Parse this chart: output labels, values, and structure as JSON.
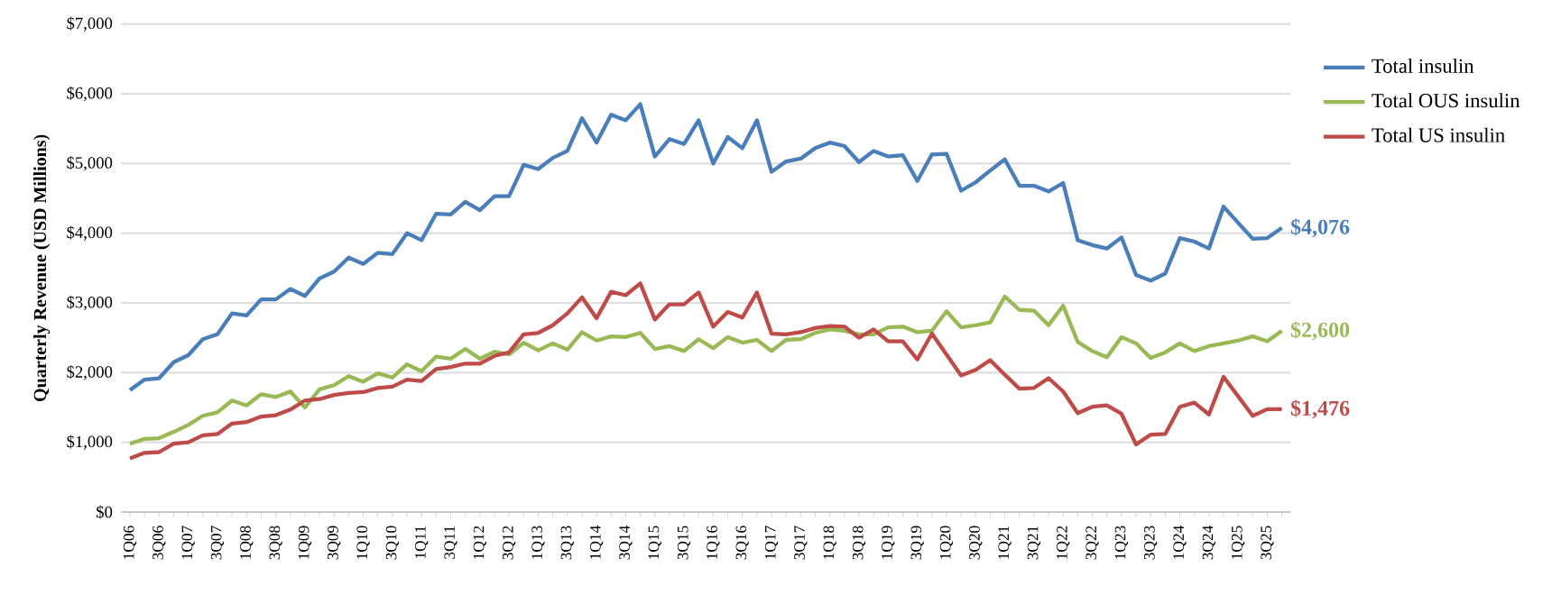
{
  "chart_data": {
    "type": "line",
    "ylabel": "Quarterly Revenue (USD Millions)",
    "categories": [
      "1Q06",
      null,
      "3Q06",
      null,
      "1Q07",
      null,
      "3Q07",
      null,
      "1Q08",
      null,
      "3Q08",
      null,
      "1Q09",
      null,
      "3Q09",
      null,
      "1Q10",
      null,
      "3Q10",
      null,
      "1Q11",
      null,
      "3Q11",
      null,
      "1Q12",
      null,
      "3Q12",
      null,
      "1Q13",
      null,
      "3Q13",
      null,
      "1Q14",
      null,
      "3Q14",
      null,
      "1Q15",
      null,
      "3Q15",
      null,
      "1Q16",
      null,
      "3Q16",
      null,
      "1Q17",
      null,
      "3Q17",
      null,
      "1Q18",
      null,
      "3Q18",
      null,
      "1Q19",
      null,
      "3Q19",
      null,
      "1Q20",
      null,
      "3Q20",
      null,
      "1Q21",
      null,
      "3Q21",
      null,
      "1Q22",
      null,
      "3Q22",
      null,
      "1Q23",
      null,
      "3Q23",
      null,
      "1Q24",
      null,
      "3Q24",
      null,
      "1Q25",
      null,
      "3Q25",
      null
    ],
    "series": [
      {
        "name": "Total insulin",
        "color": "#4a7ebb",
        "values": [
          1750,
          1900,
          1920,
          2150,
          2250,
          2480,
          2550,
          2850,
          2820,
          3050,
          3050,
          3200,
          3100,
          3350,
          3450,
          3650,
          3560,
          3720,
          3700,
          4000,
          3900,
          4280,
          4270,
          4450,
          4330,
          4530,
          4530,
          4980,
          4920,
          5080,
          5180,
          5650,
          5300,
          5700,
          5620,
          5850,
          5100,
          5350,
          5280,
          5620,
          5000,
          5380,
          5220,
          5620,
          4880,
          5030,
          5070,
          5220,
          5300,
          5250,
          5020,
          5180,
          5100,
          5120,
          4750,
          5130,
          5140,
          4610,
          4730,
          4900,
          5060,
          4680,
          4680,
          4600,
          4720,
          3900,
          3830,
          3780,
          3940,
          3400,
          3320,
          3420,
          3930,
          3880,
          3780,
          4380,
          4150,
          3920,
          3930,
          4076
        ],
        "value_labels": [
          null,
          null,
          null,
          null,
          null,
          null,
          null,
          null,
          null,
          null,
          null,
          null,
          null,
          null,
          null,
          null,
          null,
          null,
          null,
          null,
          null,
          null,
          null,
          null,
          null,
          null,
          null,
          null,
          null,
          null,
          null,
          null,
          null,
          null,
          null,
          null,
          null,
          null,
          null,
          null,
          null,
          null,
          null,
          null,
          null,
          null,
          null,
          null,
          null,
          null,
          null,
          null,
          null,
          null,
          null,
          null,
          null,
          null,
          null,
          null,
          null,
          null,
          null,
          null,
          null,
          null,
          null,
          null,
          null,
          null,
          null,
          null,
          null,
          null,
          null,
          null,
          null,
          null,
          null,
          "$4,076"
        ]
      },
      {
        "name": "Total OUS insulin",
        "color": "#98b954",
        "values": [
          980,
          1050,
          1060,
          1150,
          1250,
          1380,
          1430,
          1600,
          1530,
          1690,
          1650,
          1730,
          1500,
          1760,
          1820,
          1950,
          1870,
          1990,
          1930,
          2120,
          2020,
          2230,
          2200,
          2340,
          2200,
          2300,
          2260,
          2430,
          2320,
          2420,
          2330,
          2580,
          2460,
          2520,
          2510,
          2570,
          2340,
          2380,
          2310,
          2480,
          2350,
          2510,
          2430,
          2470,
          2310,
          2470,
          2480,
          2570,
          2620,
          2600,
          2550,
          2550,
          2650,
          2660,
          2580,
          2600,
          2880,
          2650,
          2680,
          2720,
          3090,
          2900,
          2890,
          2680,
          2960,
          2440,
          2310,
          2220,
          2510,
          2420,
          2210,
          2290,
          2420,
          2310,
          2380,
          2420,
          2460,
          2520,
          2450,
          2600
        ],
        "value_labels": [
          null,
          null,
          null,
          null,
          null,
          null,
          null,
          null,
          null,
          null,
          null,
          null,
          null,
          null,
          null,
          null,
          null,
          null,
          null,
          null,
          null,
          null,
          null,
          null,
          null,
          null,
          null,
          null,
          null,
          null,
          null,
          null,
          null,
          null,
          null,
          null,
          null,
          null,
          null,
          null,
          null,
          null,
          null,
          null,
          null,
          null,
          null,
          null,
          null,
          null,
          null,
          null,
          null,
          null,
          null,
          null,
          null,
          null,
          null,
          null,
          null,
          null,
          null,
          null,
          null,
          null,
          null,
          null,
          null,
          null,
          null,
          null,
          null,
          null,
          null,
          null,
          null,
          null,
          null,
          "$2,600"
        ]
      },
      {
        "name": "Total US insulin",
        "color": "#be4b48",
        "values": [
          770,
          850,
          860,
          980,
          1000,
          1100,
          1120,
          1270,
          1290,
          1370,
          1390,
          1470,
          1600,
          1620,
          1680,
          1710,
          1720,
          1780,
          1800,
          1900,
          1880,
          2050,
          2080,
          2130,
          2130,
          2240,
          2290,
          2550,
          2570,
          2680,
          2850,
          3080,
          2780,
          3160,
          3110,
          3280,
          2760,
          2980,
          2980,
          3150,
          2660,
          2870,
          2790,
          3150,
          2560,
          2550,
          2580,
          2640,
          2670,
          2660,
          2500,
          2620,
          2450,
          2450,
          2190,
          2560,
          2260,
          1960,
          2040,
          2180,
          1970,
          1770,
          1780,
          1920,
          1730,
          1420,
          1510,
          1530,
          1410,
          970,
          1110,
          1120,
          1510,
          1570,
          1400,
          1940,
          1660,
          1380,
          1476,
          1476
        ],
        "value_labels": [
          null,
          null,
          null,
          null,
          null,
          null,
          null,
          null,
          null,
          null,
          null,
          null,
          null,
          null,
          null,
          null,
          null,
          null,
          null,
          null,
          null,
          null,
          null,
          null,
          null,
          null,
          null,
          null,
          null,
          null,
          null,
          null,
          null,
          null,
          null,
          null,
          null,
          null,
          null,
          null,
          null,
          null,
          null,
          null,
          null,
          null,
          null,
          null,
          null,
          null,
          null,
          null,
          null,
          null,
          null,
          null,
          null,
          null,
          null,
          null,
          null,
          null,
          null,
          null,
          null,
          null,
          null,
          null,
          null,
          null,
          null,
          null,
          null,
          null,
          null,
          null,
          null,
          null,
          null,
          "$1,476"
        ]
      }
    ],
    "ylim": [
      0,
      7000
    ],
    "yticks": [
      {
        "value": 0,
        "label": "$0"
      },
      {
        "value": 1000,
        "label": "$1,000"
      },
      {
        "value": 2000,
        "label": "$2,000"
      },
      {
        "value": 3000,
        "label": "$3,000"
      },
      {
        "value": 4000,
        "label": "$4,000"
      },
      {
        "value": 5000,
        "label": "$5,000"
      },
      {
        "value": 6000,
        "label": "$6,000"
      },
      {
        "value": 7000,
        "label": "$7,000"
      }
    ],
    "grid": "y",
    "legend": "right",
    "marker": "none",
    "line_style": "solid"
  }
}
